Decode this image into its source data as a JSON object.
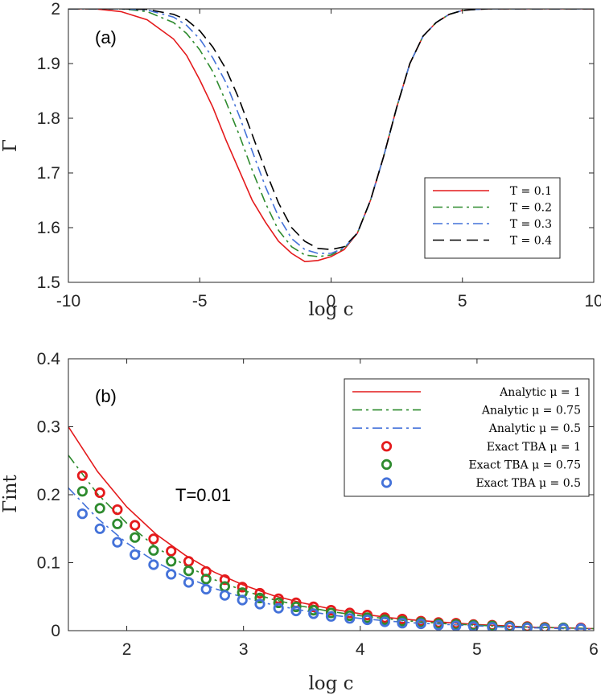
{
  "chart_data": [
    {
      "type": "line",
      "panel_label": "(a)",
      "xlabel": "log c",
      "ylabel": "Γ",
      "xlim": [
        -10,
        10
      ],
      "ylim": [
        1.5,
        2
      ],
      "xticks": [
        "-10",
        "-5",
        "0",
        "5",
        "10"
      ],
      "yticks": [
        "1.5",
        "1.6",
        "1.7",
        "1.8",
        "1.9",
        "2"
      ],
      "grid": false,
      "legend_position": "bottom-right",
      "series": [
        {
          "name": "T = 0.1",
          "color": "#e41a1c",
          "dash": "solid",
          "x": [
            -10,
            -9,
            -8,
            -7,
            -6,
            -5.5,
            -5,
            -4.5,
            -4,
            -3.5,
            -3,
            -2.5,
            -2,
            -1.5,
            -1,
            -0.5,
            0,
            0.5,
            1,
            1.5,
            2,
            2.5,
            3,
            3.5,
            4,
            4.5,
            5,
            5.5,
            6,
            7,
            8,
            9,
            10
          ],
          "y": [
            2.0,
            2.0,
            1.995,
            1.98,
            1.945,
            1.915,
            1.87,
            1.82,
            1.76,
            1.705,
            1.65,
            1.61,
            1.575,
            1.553,
            1.538,
            1.54,
            1.547,
            1.56,
            1.59,
            1.65,
            1.73,
            1.82,
            1.9,
            1.95,
            1.975,
            1.99,
            1.997,
            1.999,
            2.0,
            2.0,
            2.0,
            2.0,
            2.0
          ]
        },
        {
          "name": "T = 0.2",
          "color": "#2e8b2e",
          "dash": "dashdot",
          "x": [
            -10,
            -9,
            -8,
            -7,
            -6,
            -5.5,
            -5,
            -4.5,
            -4,
            -3.5,
            -3,
            -2.5,
            -2,
            -1.5,
            -1,
            -0.5,
            0,
            0.5,
            1,
            1.5,
            2,
            2.5,
            3,
            3.5,
            4,
            4.5,
            5,
            5.5,
            6,
            7,
            8,
            9,
            10
          ],
          "y": [
            2.0,
            2.0,
            2.0,
            1.995,
            1.975,
            1.955,
            1.925,
            1.885,
            1.83,
            1.77,
            1.705,
            1.645,
            1.595,
            1.565,
            1.55,
            1.547,
            1.55,
            1.562,
            1.59,
            1.65,
            1.73,
            1.82,
            1.9,
            1.95,
            1.975,
            1.99,
            1.997,
            1.999,
            2.0,
            2.0,
            2.0,
            2.0,
            2.0
          ]
        },
        {
          "name": "T = 0.3",
          "color": "#4472d9",
          "dash": "dashdot",
          "x": [
            -10,
            -9,
            -8,
            -7,
            -6,
            -5.5,
            -5,
            -4.5,
            -4,
            -3.5,
            -3,
            -2.5,
            -2,
            -1.5,
            -1,
            -0.5,
            0,
            0.5,
            1,
            1.5,
            2,
            2.5,
            3,
            3.5,
            4,
            4.5,
            5,
            5.5,
            6,
            7,
            8,
            9,
            10
          ],
          "y": [
            2.0,
            2.0,
            2.0,
            1.998,
            1.985,
            1.97,
            1.945,
            1.91,
            1.865,
            1.805,
            1.74,
            1.675,
            1.62,
            1.58,
            1.56,
            1.553,
            1.553,
            1.563,
            1.59,
            1.65,
            1.73,
            1.82,
            1.9,
            1.95,
            1.975,
            1.99,
            1.997,
            1.999,
            2.0,
            2.0,
            2.0,
            2.0,
            2.0
          ]
        },
        {
          "name": "T = 0.4",
          "color": "#000000",
          "dash": "dashed",
          "x": [
            -10,
            -9,
            -8,
            -7,
            -6,
            -5.5,
            -5,
            -4.5,
            -4,
            -3.5,
            -3,
            -2.5,
            -2,
            -1.5,
            -1,
            -0.5,
            0,
            0.5,
            1,
            1.5,
            2,
            2.5,
            3,
            3.5,
            4,
            4.5,
            5,
            5.5,
            6,
            7,
            8,
            9,
            10
          ],
          "y": [
            2.0,
            2.0,
            2.0,
            1.999,
            1.99,
            1.98,
            1.96,
            1.93,
            1.89,
            1.835,
            1.77,
            1.705,
            1.645,
            1.6,
            1.575,
            1.562,
            1.56,
            1.565,
            1.59,
            1.65,
            1.73,
            1.82,
            1.9,
            1.95,
            1.975,
            1.99,
            1.997,
            1.999,
            2.0,
            2.0,
            2.0,
            2.0,
            2.0
          ]
        }
      ]
    },
    {
      "type": "line",
      "panel_label": "(b)",
      "annotation": "T=0.01",
      "xlabel": "log c",
      "ylabel": "Γint",
      "xlim": [
        1.5,
        6
      ],
      "ylim": [
        0,
        0.4
      ],
      "xticks": [
        "2",
        "3",
        "4",
        "5",
        "6"
      ],
      "yticks": [
        "0",
        "0.1",
        "0.2",
        "0.3",
        "0.4"
      ],
      "grid": false,
      "legend_position": "top-right",
      "series": [
        {
          "name": "Analytic μ = 1",
          "color": "#e41a1c",
          "dash": "solid",
          "kind": "line",
          "x": [
            1.5,
            1.75,
            2,
            2.25,
            2.5,
            2.75,
            3,
            3.25,
            3.5,
            3.75,
            4,
            4.25,
            4.5,
            4.75,
            5,
            5.25,
            5.5,
            5.75,
            6
          ],
          "y": [
            0.3,
            0.234,
            0.182,
            0.142,
            0.111,
            0.086,
            0.067,
            0.052,
            0.041,
            0.032,
            0.025,
            0.019,
            0.015,
            0.012,
            0.009,
            0.007,
            0.005,
            0.004,
            0.003
          ]
        },
        {
          "name": "Analytic μ = 0.75",
          "color": "#2e8b2e",
          "dash": "dashdot",
          "kind": "line",
          "x": [
            1.5,
            1.75,
            2,
            2.25,
            2.5,
            2.75,
            3,
            3.25,
            3.5,
            3.75,
            4,
            4.25,
            4.5,
            4.75,
            5,
            5.25,
            5.5,
            5.75,
            6
          ],
          "y": [
            0.258,
            0.201,
            0.158,
            0.123,
            0.096,
            0.075,
            0.059,
            0.046,
            0.036,
            0.028,
            0.022,
            0.017,
            0.013,
            0.01,
            0.008,
            0.006,
            0.005,
            0.004,
            0.003
          ]
        },
        {
          "name": "Analytic μ = 0.5",
          "color": "#4472d9",
          "dash": "dashdot",
          "kind": "line",
          "x": [
            1.5,
            1.75,
            2,
            2.25,
            2.5,
            2.75,
            3,
            3.25,
            3.5,
            3.75,
            4,
            4.25,
            4.5,
            4.75,
            5,
            5.25,
            5.5,
            5.75,
            6
          ],
          "y": [
            0.21,
            0.165,
            0.129,
            0.101,
            0.079,
            0.062,
            0.049,
            0.038,
            0.03,
            0.023,
            0.018,
            0.014,
            0.011,
            0.009,
            0.007,
            0.005,
            0.004,
            0.003,
            0.002
          ]
        },
        {
          "name": "Exact TBA μ = 1",
          "color": "#e41a1c",
          "kind": "marker",
          "x": [
            1.62,
            1.77,
            1.92,
            2.07,
            2.23,
            2.38,
            2.53,
            2.68,
            2.84,
            2.99,
            3.14,
            3.3,
            3.45,
            3.6,
            3.75,
            3.91,
            4.06,
            4.21,
            4.36,
            4.52,
            4.67,
            4.82,
            4.97,
            5.13,
            5.28,
            5.43,
            5.58,
            5.74,
            5.89
          ],
          "y": [
            0.228,
            0.203,
            0.178,
            0.155,
            0.135,
            0.117,
            0.102,
            0.087,
            0.075,
            0.064,
            0.055,
            0.047,
            0.041,
            0.035,
            0.03,
            0.026,
            0.023,
            0.019,
            0.017,
            0.014,
            0.012,
            0.011,
            0.009,
            0.008,
            0.007,
            0.006,
            0.005,
            0.004,
            0.004
          ]
        },
        {
          "name": "Exact TBA μ = 0.75",
          "color": "#2e8b2e",
          "kind": "marker",
          "x": [
            1.62,
            1.77,
            1.92,
            2.07,
            2.23,
            2.38,
            2.53,
            2.68,
            2.84,
            2.99,
            3.14,
            3.3,
            3.45,
            3.6,
            3.75,
            3.91,
            4.06,
            4.21,
            4.36,
            4.52,
            4.67,
            4.82,
            4.97,
            5.13,
            5.28,
            5.43,
            5.58,
            5.74,
            5.89
          ],
          "y": [
            0.205,
            0.18,
            0.157,
            0.137,
            0.118,
            0.102,
            0.088,
            0.076,
            0.065,
            0.056,
            0.048,
            0.041,
            0.035,
            0.03,
            0.026,
            0.022,
            0.019,
            0.016,
            0.014,
            0.012,
            0.01,
            0.009,
            0.008,
            0.007,
            0.006,
            0.005,
            0.004,
            0.004,
            0.003
          ]
        },
        {
          "name": "Exact TBA μ = 0.5",
          "color": "#4472d9",
          "kind": "marker",
          "x": [
            1.62,
            1.77,
            1.92,
            2.07,
            2.23,
            2.38,
            2.53,
            2.68,
            2.84,
            2.99,
            3.14,
            3.3,
            3.45,
            3.6,
            3.75,
            3.91,
            4.06,
            4.21,
            4.36,
            4.52,
            4.67,
            4.82,
            4.97,
            5.13,
            5.28,
            5.43,
            5.58,
            5.74,
            5.89
          ],
          "y": [
            0.172,
            0.15,
            0.13,
            0.112,
            0.097,
            0.083,
            0.071,
            0.061,
            0.052,
            0.045,
            0.039,
            0.033,
            0.029,
            0.025,
            0.021,
            0.018,
            0.016,
            0.013,
            0.011,
            0.01,
            0.008,
            0.007,
            0.006,
            0.005,
            0.005,
            0.004,
            0.003,
            0.003,
            0.003
          ]
        }
      ]
    }
  ]
}
